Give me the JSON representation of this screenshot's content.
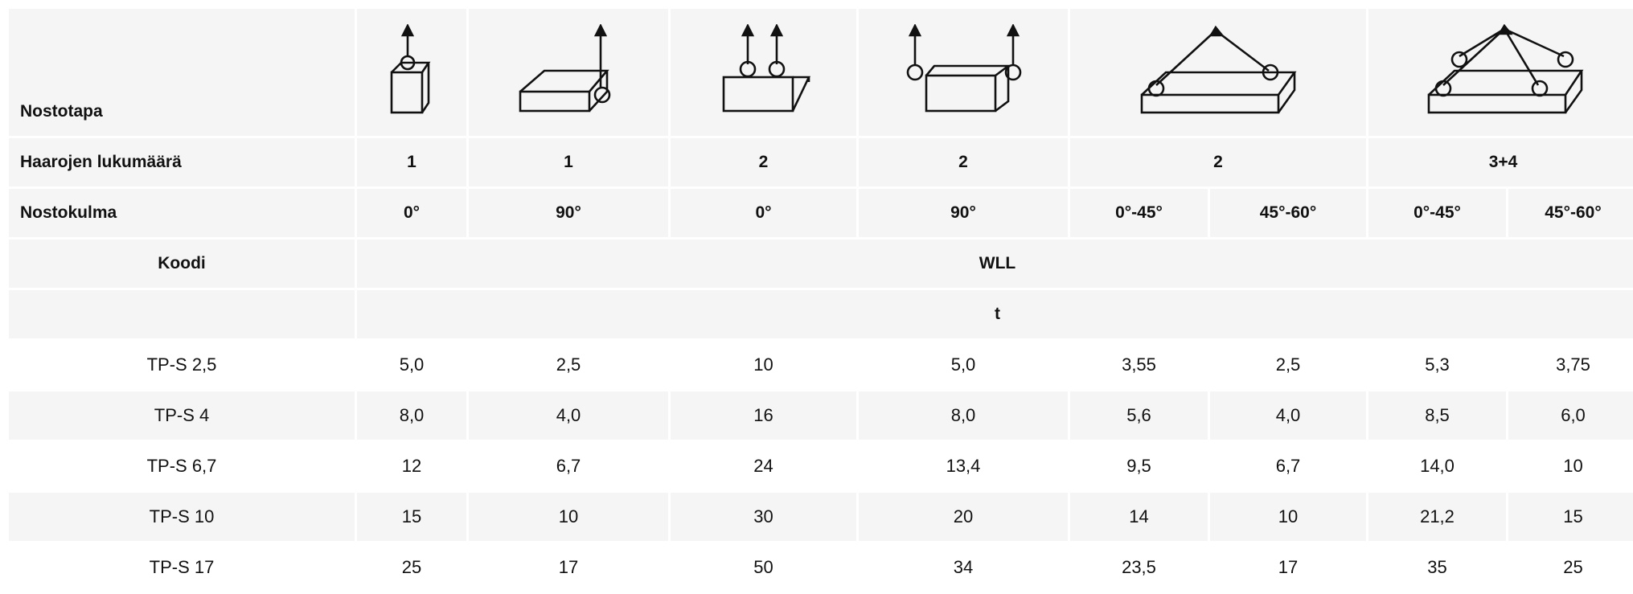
{
  "table": {
    "header": {
      "method_label": "Nostotapa",
      "legs_label": "Haarojen lukumäärä",
      "legs": [
        "1",
        "1",
        "2",
        "2",
        "2",
        "3+4"
      ],
      "angle_label": "Nostokulma",
      "angles": [
        "0°",
        "90°",
        "0°",
        "90°",
        "0°-45°",
        "45°-60°",
        "0°-45°",
        "45°-60°"
      ],
      "code_label": "Koodi",
      "wll_label": "WLL",
      "unit": "t"
    },
    "rows": [
      [
        "TP-S 2,5",
        "5,0",
        "2,5",
        "10",
        "5,0",
        "3,55",
        "2,5",
        "5,3",
        "3,75"
      ],
      [
        "TP-S 4",
        "8,0",
        "4,0",
        "16",
        "8,0",
        "5,6",
        "4,0",
        "8,5",
        "6,0"
      ],
      [
        "TP-S 6,7",
        "12",
        "6,7",
        "24",
        "13,4",
        "9,5",
        "6,7",
        "14,0",
        "10"
      ],
      [
        "TP-S 10",
        "15",
        "10",
        "30",
        "20",
        "14",
        "10",
        "21,2",
        "15"
      ],
      [
        "TP-S 17",
        "25",
        "17",
        "50",
        "34",
        "23,5",
        "17",
        "35",
        "25"
      ]
    ]
  }
}
